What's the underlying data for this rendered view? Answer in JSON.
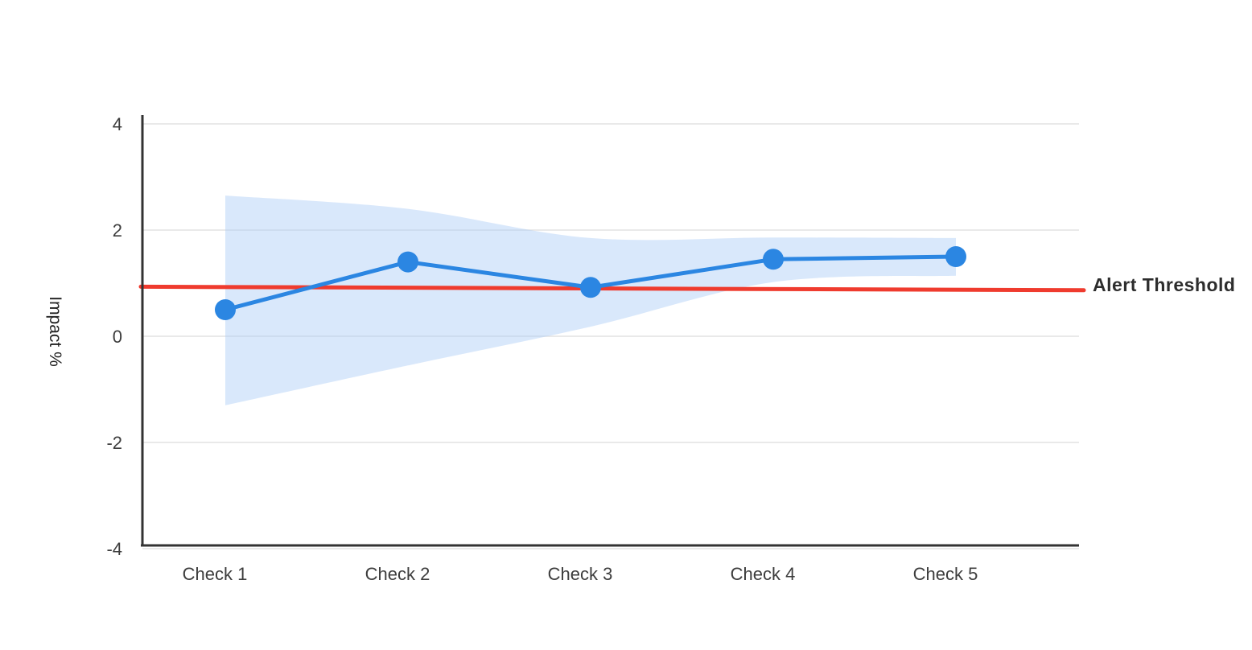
{
  "chart_data": {
    "type": "line",
    "title": "",
    "categories": [
      "Check 1",
      "Check 2",
      "Check 3",
      "Check 4",
      "Check 5"
    ],
    "series": [
      {
        "name": "impact-line",
        "type": "line-with-markers",
        "values": [
          0.5,
          1.4,
          0.92,
          1.45,
          1.5
        ]
      },
      {
        "name": "confidence-band",
        "type": "area",
        "upper": [
          2.65,
          2.4,
          1.85,
          1.86,
          1.85
        ],
        "lower": [
          -1.3,
          -0.55,
          0.18,
          1.02,
          1.14
        ]
      }
    ],
    "threshold": {
      "label": "Alert Threshold",
      "value": 0.9
    },
    "xlabel": "",
    "ylabel": "Impact %",
    "yticks": [
      "4",
      "2",
      "0",
      "-2",
      "-4"
    ],
    "ytick_values": [
      4,
      2,
      0,
      -2,
      -4
    ],
    "ylim": [
      -4,
      4.2
    ],
    "grid": true,
    "legend_position": "none",
    "colors": {
      "line": "#2b86e2",
      "marker": "#2b86e2",
      "band": "#aaccf6",
      "threshold": "#ef3b2e",
      "axis": "#333333",
      "gridline": "#e2e2e2",
      "tick_text": "#3d3d3d",
      "axis_title_text": "#222222",
      "threshold_label_text": "#2d2d2d",
      "background": "#ffffff"
    }
  }
}
